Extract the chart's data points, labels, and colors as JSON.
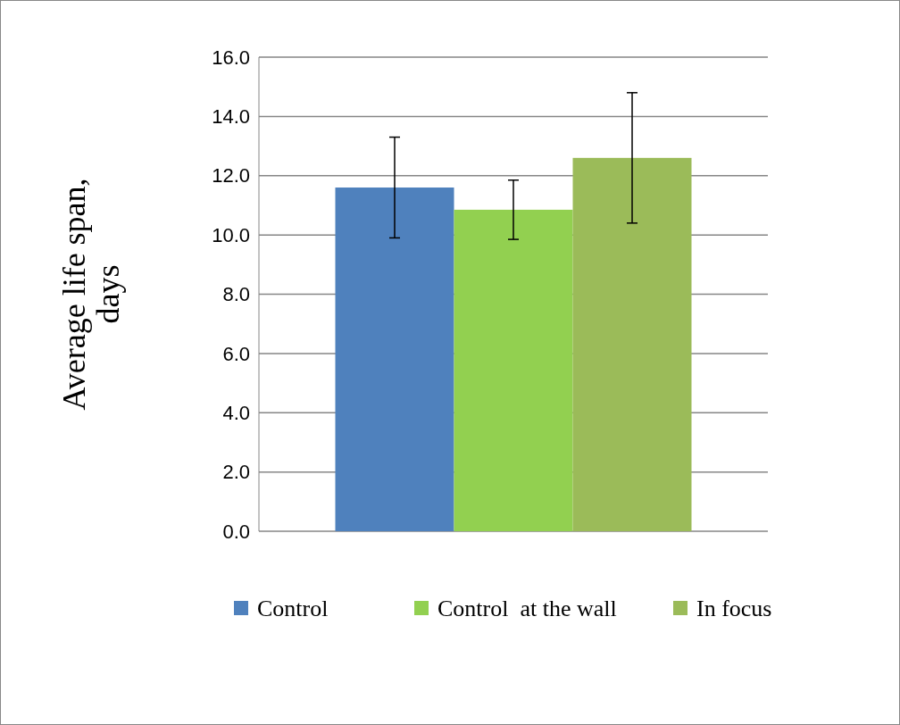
{
  "chart_data": {
    "type": "bar",
    "ylabel": "Average life span, days",
    "categories": [
      null
    ],
    "series": [
      {
        "name": "Control",
        "color": "#4f81bd",
        "values": [
          11.6
        ],
        "errors": [
          1.7
        ]
      },
      {
        "name": "Control  at the wall",
        "color": "#92d050",
        "values": [
          10.85
        ],
        "errors": [
          1.0
        ]
      },
      {
        "name": "In focus",
        "color": "#9bbb59",
        "values": [
          12.6
        ],
        "errors": [
          2.2
        ]
      }
    ],
    "ylim": [
      0,
      16
    ],
    "yticks": [
      {
        "value": 0,
        "label": "0.0"
      },
      {
        "value": 2,
        "label": "2.0"
      },
      {
        "value": 4,
        "label": "4.0"
      },
      {
        "value": 6,
        "label": "6.0"
      },
      {
        "value": 8,
        "label": "8.0"
      },
      {
        "value": 10,
        "label": "10.0"
      },
      {
        "value": 12,
        "label": "12.0"
      },
      {
        "value": 14,
        "label": "14.0"
      },
      {
        "value": 16,
        "label": "16.0"
      }
    ],
    "grid": "y",
    "legend": "bottom"
  }
}
